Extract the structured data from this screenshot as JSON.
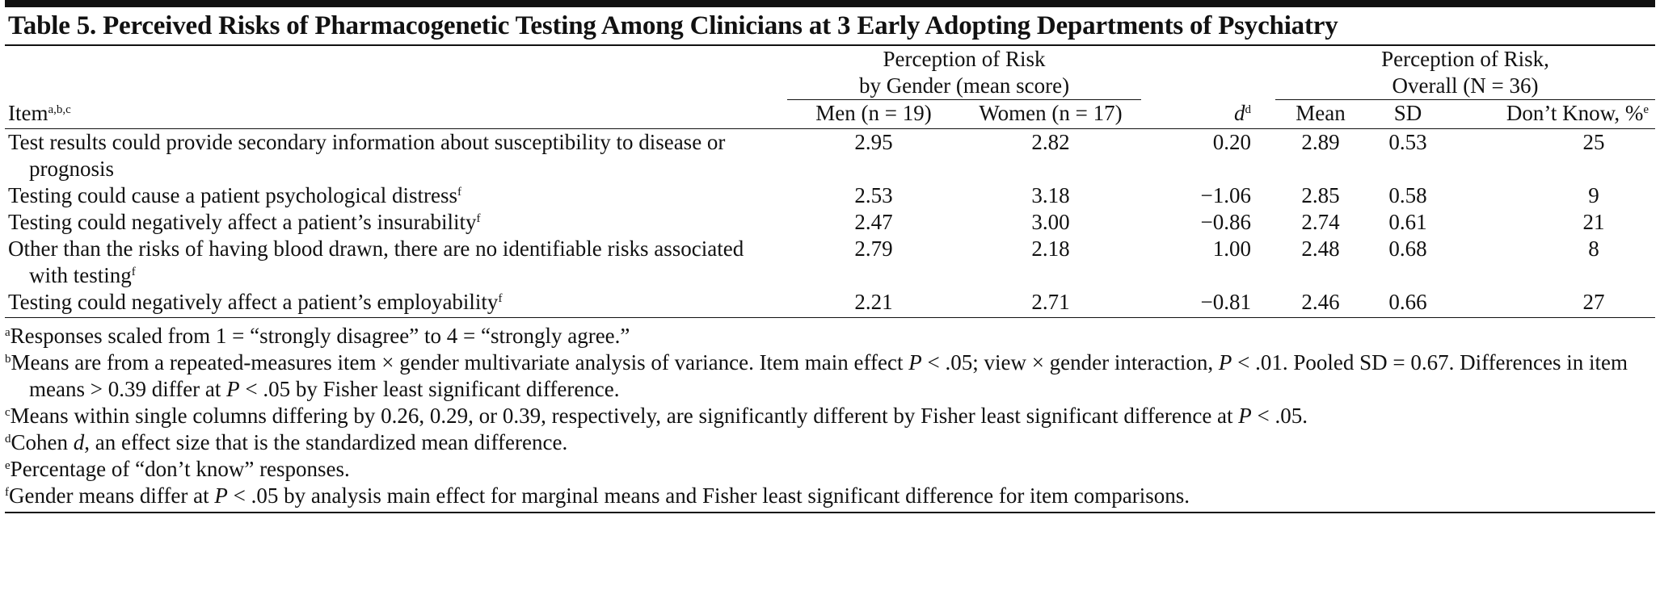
{
  "title": "Table 5. Perceived Risks of Pharmacogenetic Testing Among Clinicians at 3 Early Adopting Departments of Psychiatry",
  "header": {
    "item": {
      "text": "Item",
      "sup": "a,b,c"
    },
    "group_gender": [
      "Perception of Risk",
      "by Gender (mean score)"
    ],
    "group_overall": [
      "Perception of Risk,",
      "Overall (N = 36)"
    ],
    "columns": [
      {
        "text": "Men (n = 19)"
      },
      {
        "text": "Women (n = 17)"
      },
      {
        "text": "d",
        "sup": "d",
        "italic": true
      },
      {
        "text": "Mean"
      },
      {
        "text": "SD"
      },
      {
        "text": "Don’t Know, %",
        "sup": "e"
      }
    ]
  },
  "rows": [
    {
      "item": "Test results could provide secondary information about susceptibility to disease or prognosis",
      "values": [
        "2.95",
        "2.82",
        "0.20",
        "2.89",
        "0.53",
        "25"
      ]
    },
    {
      "item": "Testing could cause a patient psychological distress",
      "sup": "f",
      "values": [
        "2.53",
        "3.18",
        "−1.06",
        "2.85",
        "0.58",
        "9"
      ]
    },
    {
      "item": "Testing could negatively affect a patient’s insurability",
      "sup": "f",
      "values": [
        "2.47",
        "3.00",
        "−0.86",
        "2.74",
        "0.61",
        "21"
      ]
    },
    {
      "item": "Other than the risks of having blood drawn, there are no identifiable risks associated with testing",
      "sup": "f",
      "values": [
        "2.79",
        "2.18",
        "1.00",
        "2.48",
        "0.68",
        "8"
      ]
    },
    {
      "item": "Testing could negatively affect a patient’s employability",
      "sup": "f",
      "values": [
        "2.21",
        "2.71",
        "−0.81",
        "2.46",
        "0.66",
        "27"
      ]
    }
  ],
  "footnotes": [
    {
      "mark": "a",
      "parts": [
        {
          "t": "Responses scaled from 1 = “strongly disagree” to 4 = “strongly agree.”"
        }
      ]
    },
    {
      "mark": "b",
      "parts": [
        {
          "t": "Means are from a repeated-measures item × gender multivariate analysis of variance. Item main effect "
        },
        {
          "t": "P",
          "i": true
        },
        {
          "t": " < .05; view × gender interaction, "
        },
        {
          "t": "P",
          "i": true
        },
        {
          "t": " < .01. Pooled SD = 0.67. Differences in item means > 0.39 differ at "
        },
        {
          "t": "P",
          "i": true
        },
        {
          "t": " < .05 by Fisher least significant difference."
        }
      ]
    },
    {
      "mark": "c",
      "parts": [
        {
          "t": "Means within single columns differing by 0.26, 0.29, or 0.39, respectively, are significantly different by Fisher least significant difference at "
        },
        {
          "t": "P",
          "i": true
        },
        {
          "t": " < .05."
        }
      ]
    },
    {
      "mark": "d",
      "parts": [
        {
          "t": "Cohen "
        },
        {
          "t": "d",
          "i": true
        },
        {
          "t": ", an effect size that is the standardized mean difference."
        }
      ]
    },
    {
      "mark": "e",
      "parts": [
        {
          "t": "Percentage of “don’t know” responses."
        }
      ]
    },
    {
      "mark": "f",
      "parts": [
        {
          "t": "Gender means differ at "
        },
        {
          "t": "P",
          "i": true
        },
        {
          "t": " < .05 by analysis main effect for marginal means and Fisher least significant difference for item comparisons."
        }
      ]
    }
  ]
}
